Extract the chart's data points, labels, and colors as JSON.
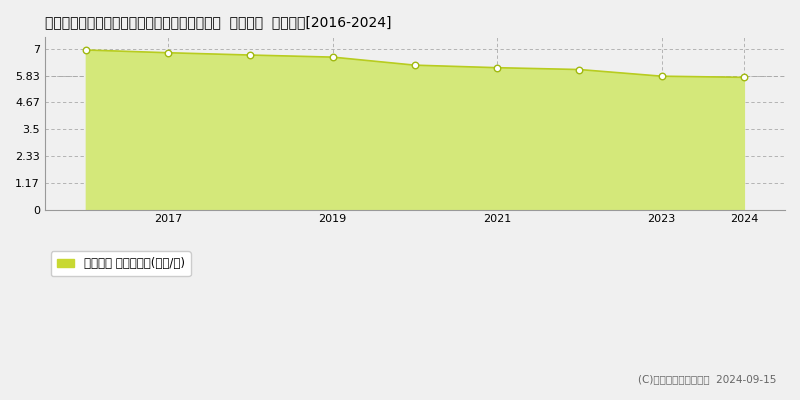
{
  "title": "栃木県栃木市西方町金崎字木ノ下２８８番１外  地価公示  地価推移[2016-2024]",
  "years": [
    2016,
    2017,
    2018,
    2019,
    2020,
    2021,
    2022,
    2023,
    2024
  ],
  "values": [
    6.94,
    6.82,
    6.72,
    6.63,
    6.28,
    6.17,
    6.09,
    5.8,
    5.75
  ],
  "yticks": [
    0,
    1.17,
    2.33,
    3.5,
    4.67,
    5.83,
    7
  ],
  "ytick_labels": [
    "0",
    "1.17",
    "2.33",
    "3.5",
    "4.67",
    "5.83",
    "7"
  ],
  "xticks": [
    2017,
    2019,
    2021,
    2023,
    2024
  ],
  "ylim": [
    0,
    7.5
  ],
  "xlim": [
    2015.5,
    2024.5
  ],
  "line_color": "#b8cc20",
  "fill_color": "#d4e87a",
  "fill_alpha": 1.0,
  "marker_color": "white",
  "marker_edge_color": "#a0b810",
  "background_color": "#f0f0f0",
  "plot_bg_color": "#f0f0f0",
  "grid_color": "#aaaaaa",
  "legend_label": "地価公示 平均坪単価(万円/坪)",
  "legend_marker_color": "#c8d832",
  "copyright_text": "(C)土地価格ドットコム  2024-09-15",
  "hline_value": 5.83,
  "hline_color": "#aaaaaa",
  "title_fontsize": 10,
  "tick_fontsize": 8,
  "legend_fontsize": 8.5,
  "copyright_fontsize": 7.5
}
